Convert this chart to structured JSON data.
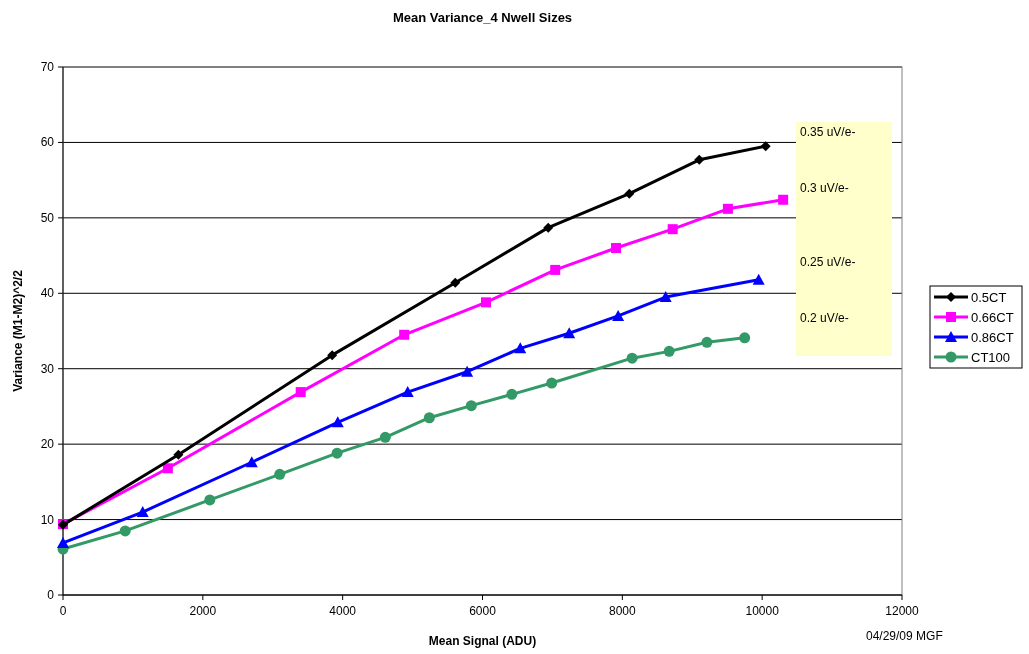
{
  "chart_data": {
    "type": "line",
    "title": "Mean Variance_4 Nwell Sizes",
    "xlabel": "Mean Signal (ADU)",
    "ylabel": "Variance (M1-M2)^2/2",
    "xlim": [
      0,
      12000
    ],
    "xticks": [
      0,
      2000,
      4000,
      6000,
      8000,
      10000,
      12000
    ],
    "ylim": [
      0,
      70
    ],
    "yticks": [
      0,
      10,
      20,
      30,
      40,
      50,
      60,
      70
    ],
    "grid": "y",
    "legend": "right",
    "series": [
      {
        "name": "0.5CT",
        "color": "#000000",
        "marker": "diamond",
        "x": [
          0,
          1650,
          3850,
          5610,
          6940,
          8100,
          9100,
          10050
        ],
        "values": [
          9.3,
          18.6,
          31.8,
          41.4,
          48.7,
          53.2,
          57.7,
          59.5
        ]
      },
      {
        "name": "0.66CT",
        "color": "#ff00ff",
        "marker": "square",
        "x": [
          0,
          1500,
          3400,
          4880,
          6050,
          7040,
          7910,
          8720,
          9510,
          10300
        ],
        "values": [
          9.4,
          16.8,
          26.9,
          34.5,
          38.8,
          43.1,
          46.0,
          48.5,
          51.2,
          52.4
        ]
      },
      {
        "name": "0.86CT",
        "color": "#0000ff",
        "marker": "triangle",
        "x": [
          0,
          1140,
          2700,
          3930,
          4930,
          5780,
          6540,
          7240,
          7940,
          8620,
          9950
        ],
        "values": [
          6.9,
          11.0,
          17.6,
          22.9,
          26.9,
          29.6,
          32.7,
          34.7,
          37.0,
          39.5,
          41.8
        ]
      },
      {
        "name": "CT100",
        "color": "#339966",
        "marker": "circle",
        "x": [
          0,
          890,
          2100,
          3100,
          3920,
          4610,
          5240,
          5840,
          6420,
          6990,
          8140,
          8670,
          9210,
          9750
        ],
        "values": [
          6.1,
          8.5,
          12.6,
          16.0,
          18.8,
          20.9,
          23.5,
          25.1,
          26.6,
          28.1,
          31.4,
          32.3,
          33.5,
          34.1
        ]
      }
    ],
    "annotations": [
      "0.35 uV/e-",
      "0.3 uV/e-",
      "0.25 uV/e-",
      "0.2 uV/e-",
      "04/29/09  MGF"
    ]
  }
}
